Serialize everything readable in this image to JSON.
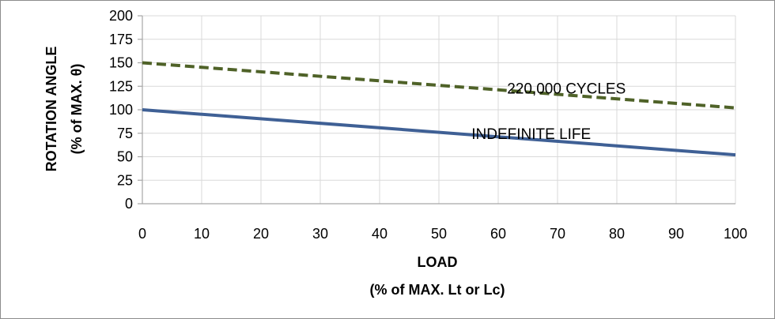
{
  "chart_data": {
    "type": "line",
    "title": "",
    "xlabel": [
      "LOAD",
      "(% of MAX. Lt or Lc)"
    ],
    "ylabel": [
      "ROTATION ANGLE",
      "(% of MAX. θ)"
    ],
    "xlim": [
      0,
      100
    ],
    "ylim": [
      0,
      200
    ],
    "x_ticks": [
      "0",
      "10",
      "20",
      "30",
      "40",
      "50",
      "60",
      "70",
      "80",
      "90",
      "100"
    ],
    "y_ticks": [
      "0",
      "25",
      "50",
      "75",
      "100",
      "125",
      "150",
      "175",
      "200"
    ],
    "grid": true,
    "legend": "none",
    "series": [
      {
        "name": "220,000 CYCLES",
        "x": [
          0,
          100
        ],
        "y": [
          150,
          102
        ],
        "style": "dashed",
        "color": "#4f6228"
      },
      {
        "name": "INDEFINITE LIFE",
        "x": [
          0,
          100
        ],
        "y": [
          100,
          52
        ],
        "style": "solid",
        "color": "#3f6095"
      }
    ]
  },
  "colors": {
    "grid": "#d9d9d9",
    "axis": "#a6a6a6",
    "frame": "#8c8c8c"
  }
}
